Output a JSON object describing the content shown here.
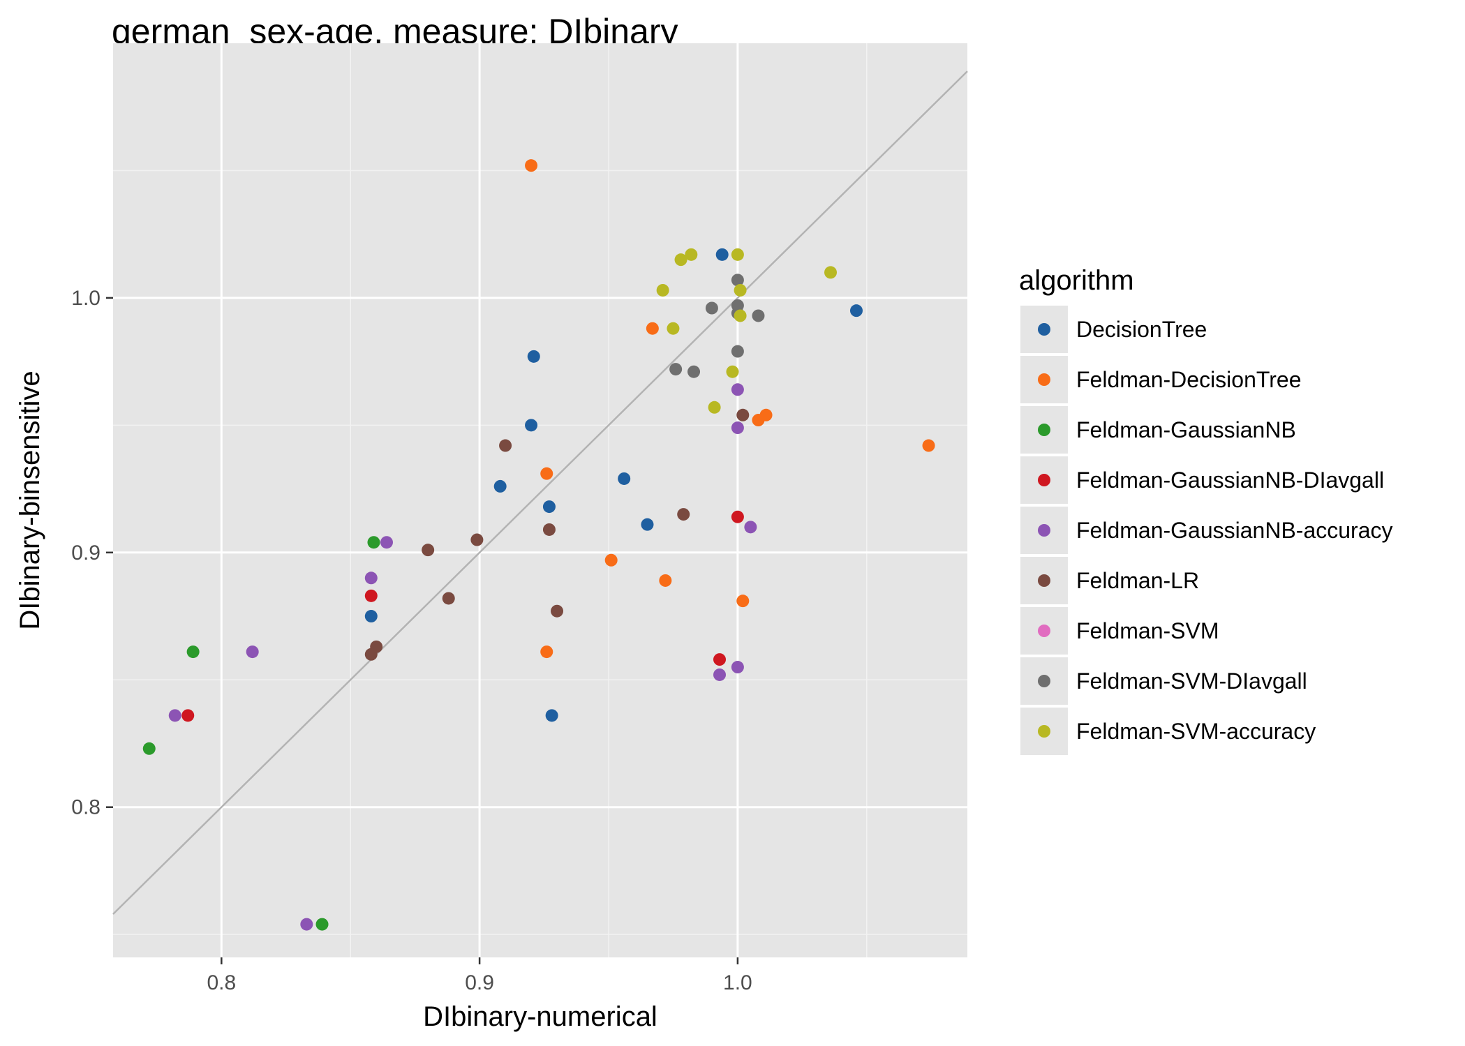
{
  "chart_data": {
    "type": "scatter",
    "title": "german_sex-age, measure: DIbinary",
    "xlabel": "DIbinary-numerical",
    "ylabel": "DIbinary-binsensitive",
    "xlim": [
      0.758,
      1.089
    ],
    "ylim": [
      0.741,
      1.1
    ],
    "x_ticks": [
      0.8,
      0.9,
      1.0
    ],
    "x_tick_labels": [
      "0.8",
      "0.9",
      "1.0"
    ],
    "y_ticks": [
      0.8,
      0.9,
      1.0
    ],
    "y_tick_labels": [
      "0.8",
      "0.9",
      "1.0"
    ],
    "grid": true,
    "reference_line": {
      "type": "identity",
      "color": "#b3b3b3"
    },
    "legend": {
      "title": "algorithm",
      "placement": "right"
    },
    "series": [
      {
        "name": "DecisionTree",
        "color": "#1f5fa0",
        "points": [
          [
            0.994,
            1.017
          ],
          [
            1.046,
            0.995
          ],
          [
            0.921,
            0.977
          ],
          [
            0.92,
            0.95
          ],
          [
            0.956,
            0.929
          ],
          [
            0.908,
            0.926
          ],
          [
            0.927,
            0.918
          ],
          [
            0.965,
            0.911
          ],
          [
            0.858,
            0.875
          ],
          [
            0.928,
            0.836
          ]
        ]
      },
      {
        "name": "Feldman-DecisionTree",
        "color": "#f86c17",
        "points": [
          [
            0.92,
            1.052
          ],
          [
            0.967,
            0.988
          ],
          [
            1.011,
            0.954
          ],
          [
            1.008,
            0.952
          ],
          [
            1.074,
            0.942
          ],
          [
            0.926,
            0.931
          ],
          [
            0.951,
            0.897
          ],
          [
            0.972,
            0.889
          ],
          [
            1.002,
            0.881
          ],
          [
            0.926,
            0.861
          ]
        ]
      },
      {
        "name": "Feldman-GaussianNB",
        "color": "#2b9a2b",
        "points": [
          [
            0.859,
            0.904
          ],
          [
            0.789,
            0.861
          ],
          [
            0.772,
            0.823
          ],
          [
            0.839,
            0.754
          ]
        ]
      },
      {
        "name": "Feldman-GaussianNB-DIavgall",
        "color": "#cf1720",
        "points": [
          [
            1.0,
            0.914
          ],
          [
            0.858,
            0.883
          ],
          [
            0.993,
            0.858
          ],
          [
            0.787,
            0.836
          ]
        ]
      },
      {
        "name": "Feldman-GaussianNB-accuracy",
        "color": "#8c54b4",
        "points": [
          [
            1.0,
            0.964
          ],
          [
            1.0,
            0.949
          ],
          [
            1.005,
            0.91
          ],
          [
            0.864,
            0.904
          ],
          [
            0.858,
            0.89
          ],
          [
            0.812,
            0.861
          ],
          [
            1.0,
            0.855
          ],
          [
            0.993,
            0.852
          ],
          [
            0.782,
            0.836
          ],
          [
            0.833,
            0.754
          ]
        ]
      },
      {
        "name": "Feldman-LR",
        "color": "#7a4a40",
        "points": [
          [
            1.002,
            0.954
          ],
          [
            0.91,
            0.942
          ],
          [
            0.979,
            0.915
          ],
          [
            0.927,
            0.909
          ],
          [
            0.899,
            0.905
          ],
          [
            0.88,
            0.901
          ],
          [
            0.888,
            0.882
          ],
          [
            0.93,
            0.877
          ],
          [
            0.86,
            0.863
          ],
          [
            0.858,
            0.86
          ]
        ]
      },
      {
        "name": "Feldman-SVM",
        "color": "#e16cc0",
        "points": []
      },
      {
        "name": "Feldman-SVM-DIavgall",
        "color": "#6f6f6f",
        "points": [
          [
            1.0,
            1.007
          ],
          [
            1.0,
            0.997
          ],
          [
            0.99,
            0.996
          ],
          [
            1.0,
            0.994
          ],
          [
            1.008,
            0.993
          ],
          [
            1.0,
            0.979
          ],
          [
            0.976,
            0.972
          ],
          [
            0.983,
            0.971
          ]
        ]
      },
      {
        "name": "Feldman-SVM-accuracy",
        "color": "#b8b823",
        "points": [
          [
            0.982,
            1.017
          ],
          [
            1.0,
            1.017
          ],
          [
            0.978,
            1.015
          ],
          [
            1.036,
            1.01
          ],
          [
            0.971,
            1.003
          ],
          [
            1.001,
            1.003
          ],
          [
            1.001,
            0.993
          ],
          [
            0.975,
            0.988
          ],
          [
            0.998,
            0.971
          ],
          [
            0.991,
            0.957
          ]
        ]
      }
    ]
  }
}
